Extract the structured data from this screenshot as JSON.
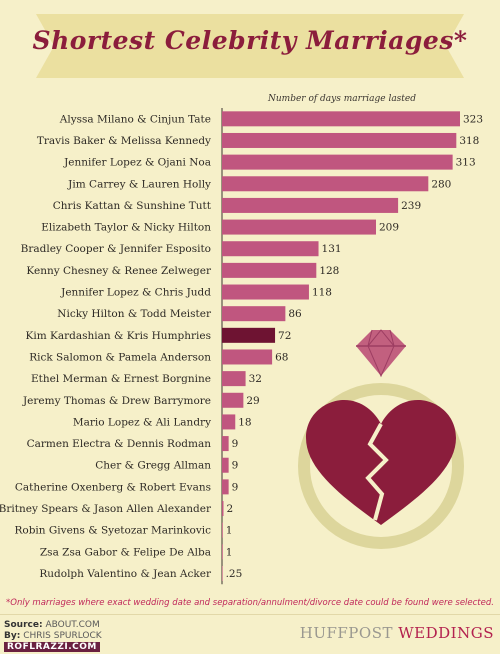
{
  "title": "Shortest Celebrity Marriages*",
  "subtitle": "Number of days marriage lasted",
  "footnote": "*Only marriages where exact wedding date and separation/annulment/divorce date could be found were selected.",
  "credits": {
    "source_key": "Source:",
    "source_val": "ABOUT.COM",
    "by_key": "By:",
    "by_val": "CHRIS SPURLOCK"
  },
  "brand": {
    "part1": "HUFFPOST",
    "part2": "WEDDINGS"
  },
  "watermark": "ROFLRAZZI.COM",
  "colors": {
    "bar": "#c0567f",
    "highlight": "#6e1332",
    "banner": "#ebe0a0",
    "title": "#8b1d3c",
    "ring": "#ddd69c",
    "heart": "#8b1d3c",
    "diamond": "#c2607f"
  },
  "icons": {
    "ring": "ring-icon",
    "heart": "broken-heart-icon",
    "diamond": "diamond-icon"
  },
  "chart_data": {
    "type": "bar",
    "orientation": "horizontal",
    "title": "Shortest Celebrity Marriages*",
    "xlabel": "Number of days marriage lasted",
    "xlim": [
      0,
      323
    ],
    "grid": false,
    "highlight_index": 10,
    "categories": [
      "Alyssa Milano & Cinjun Tate",
      "Travis Baker & Melissa Kennedy",
      "Jennifer Lopez & Ojani Noa",
      "Jim Carrey & Lauren Holly",
      "Chris Kattan & Sunshine Tutt",
      "Elizabeth Taylor & Nicky Hilton",
      "Bradley Cooper & Jennifer Esposito",
      "Kenny Chesney & Renee Zelweger",
      "Jennifer Lopez & Chris Judd",
      "Nicky Hilton & Todd Meister",
      "Kim Kardashian & Kris Humphries",
      "Rick Salomon & Pamela Anderson",
      "Ethel Merman & Ernest Borgnine",
      "Jeremy Thomas & Drew Barrymore",
      "Mario Lopez & Ali Landry",
      "Carmen Electra & Dennis Rodman",
      "Cher & Gregg Allman",
      "Catherine Oxenberg & Robert Evans",
      "Britney Spears & Jason Allen Alexander",
      "Robin Givens & Syetozar Marinkovic",
      "Zsa Zsa Gabor & Felipe De Alba",
      "Rudolph Valentino & Jean Acker"
    ],
    "values": [
      323,
      318,
      313,
      280,
      239,
      209,
      131,
      128,
      118,
      86,
      72,
      68,
      32,
      29,
      18,
      9,
      9,
      9,
      2,
      1,
      1,
      0.25
    ],
    "value_labels": [
      "323",
      "318",
      "313",
      "280",
      "239",
      "209",
      "131",
      "128",
      "118",
      "86",
      "72",
      "68",
      "32",
      "29",
      "18",
      "9",
      "9",
      "9",
      "2",
      "1",
      "1",
      ".25"
    ]
  }
}
